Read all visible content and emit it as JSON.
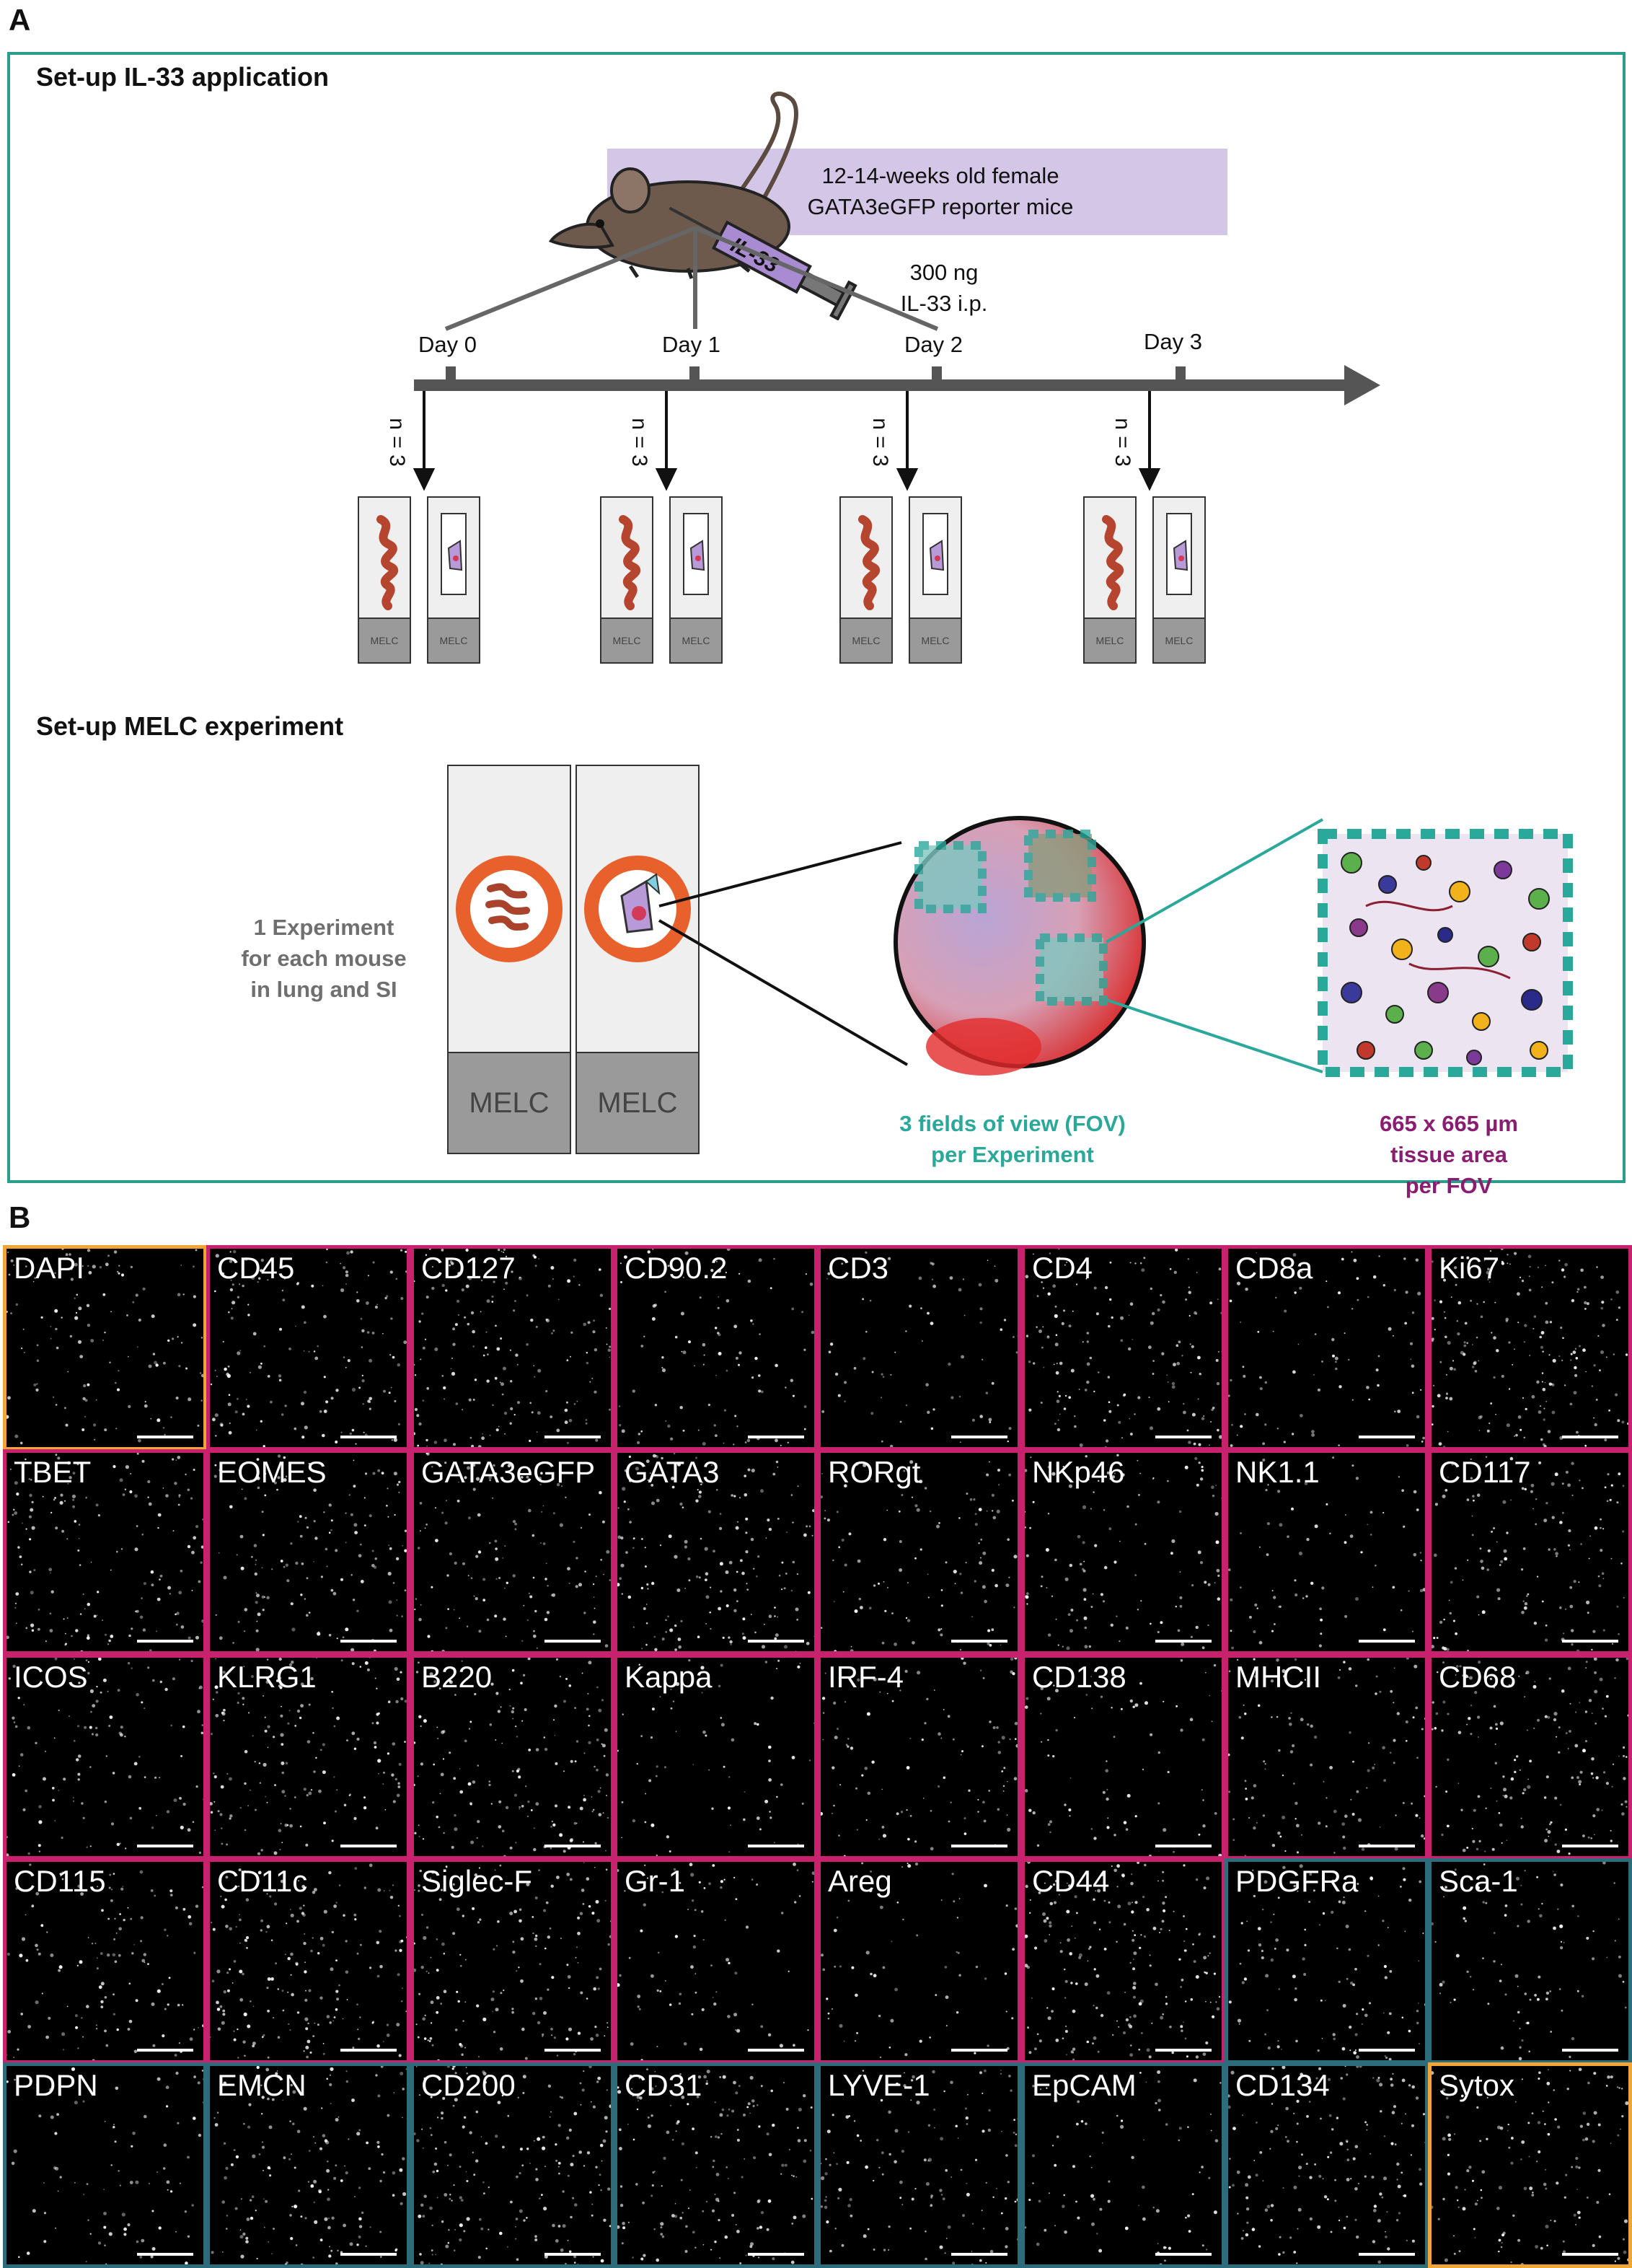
{
  "panel_a": {
    "letter": "A",
    "setup_il33_title": "Set-up IL-33 application",
    "mice_line1": "12-14-weeks old female",
    "mice_line2": "GATA3eGFP reporter mice",
    "syringe_label": "IL-33",
    "injection_line1": "300 ng",
    "injection_line2": "IL-33 i.p.",
    "days": [
      "Day 0",
      "Day 1",
      "Day 2",
      "Day 3"
    ],
    "n_label": "n = 3",
    "slide_label_small": "MELC",
    "setup_melc_title": "Set-up MELC experiment",
    "slide_label_big": "MELC",
    "experiment_line1": "1 Experiment",
    "experiment_line2": "for each mouse",
    "experiment_line3": "in lung and SI",
    "fov_line1": "3 fields of view (FOV)",
    "fov_line2": "per  Experiment",
    "area_line1": "665 x 665 µm",
    "area_line2": "tissue area",
    "area_line3": "per FOV",
    "colors": {
      "frame": "#2a9d8f",
      "fov": "#2aa89a",
      "area": "#8a1c72",
      "ring": "#e8602c",
      "mice_box": "#d4c6e6"
    }
  },
  "panel_b": {
    "letter": "B",
    "markers": [
      [
        "DAPI",
        "CD45",
        "CD127",
        "CD90.2",
        "CD3",
        "CD4",
        "CD8a",
        "Ki67"
      ],
      [
        "TBET",
        "EOMES",
        "GATA3eGFP",
        "GATA3",
        "RORgt",
        "NKp46",
        "NK1.1",
        "CD117"
      ],
      [
        "ICOS",
        "KLRG1",
        "B220",
        "Kappa",
        "IRF-4",
        "CD138",
        "MHCII",
        "CD68"
      ],
      [
        "CD115",
        "CD11c",
        "Siglec-F",
        "Gr-1",
        "Areg",
        "CD44",
        "PDGFRa",
        "Sca-1"
      ],
      [
        "PDPN",
        "EMCN",
        "CD200",
        "CD31",
        "LYVE-1",
        "EpCAM",
        "CD134",
        "Sytox"
      ]
    ],
    "border_groups": {
      "orange": [
        "DAPI",
        "Sytox"
      ],
      "teal": [
        "PDGFRa",
        "Sca-1",
        "PDPN",
        "EMCN",
        "CD200",
        "CD31",
        "LYVE-1",
        "EpCAM",
        "CD134"
      ]
    },
    "colors": {
      "magenta": "#c8216e",
      "orange": "#f0a536",
      "teal": "#2d6c7a"
    }
  }
}
